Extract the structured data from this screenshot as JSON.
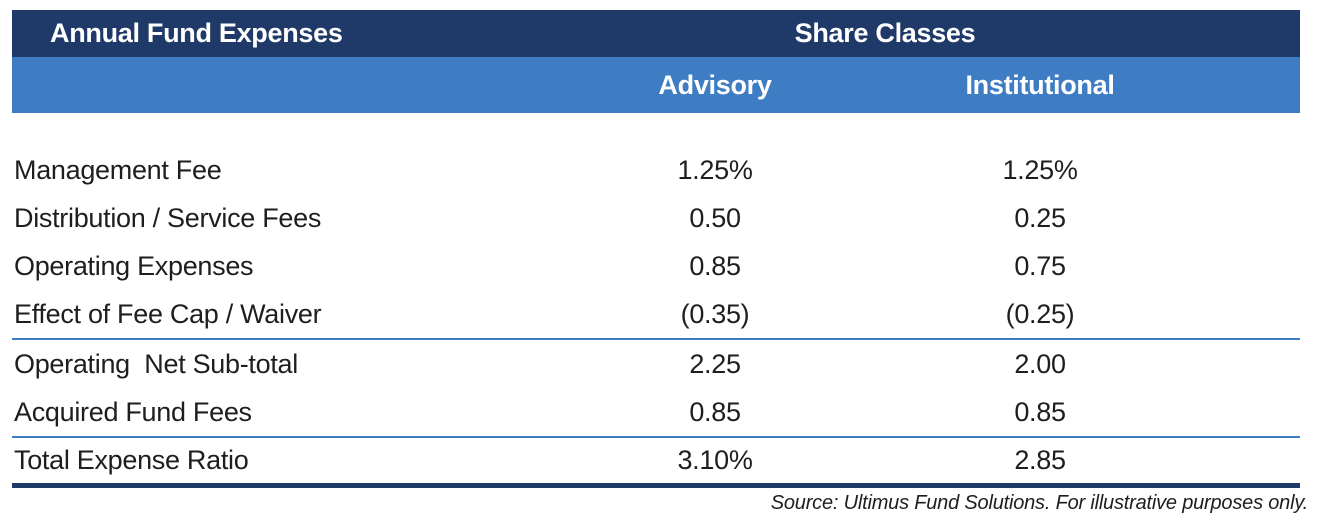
{
  "chart_data": {
    "type": "table",
    "title": "Annual Fund Expenses",
    "column_group_header": "Share Classes",
    "columns": {
      "advisory": "Advisory",
      "institutional": "Institutional"
    },
    "rows": [
      {
        "label": "Management Fee",
        "advisory": "1.25%",
        "institutional": "1.25%"
      },
      {
        "label": "Distribution / Service Fees",
        "advisory": "0.50",
        "institutional": "0.25"
      },
      {
        "label": "Operating Expenses",
        "advisory": "0.85",
        "institutional": "0.75"
      },
      {
        "label": "Effect of Fee Cap / Waiver",
        "advisory": "(0.35)",
        "institutional": "(0.25)"
      },
      {
        "label": "Operating  Net Sub-total",
        "advisory": "2.25",
        "institutional": "2.00"
      },
      {
        "label": "Acquired Fund Fees",
        "advisory": "0.85",
        "institutional": "0.85"
      },
      {
        "label": "Total Expense Ratio",
        "advisory": "3.10%",
        "institutional": "2.85"
      }
    ],
    "footer_note": "Source: Ultimus Fund Solutions. For illustrative purposes only.",
    "layout": {
      "grid": "off",
      "legend": "none",
      "separators_above_rows": [
        4,
        6
      ]
    },
    "colors": {
      "header_dark": "#1f3a68",
      "header_light": "#3e7dc3",
      "separator_line": "#3e7dc3",
      "total_rule": "#1f3a68",
      "body_text": "#1e1e1e",
      "header_text": "#ffffff"
    }
  }
}
